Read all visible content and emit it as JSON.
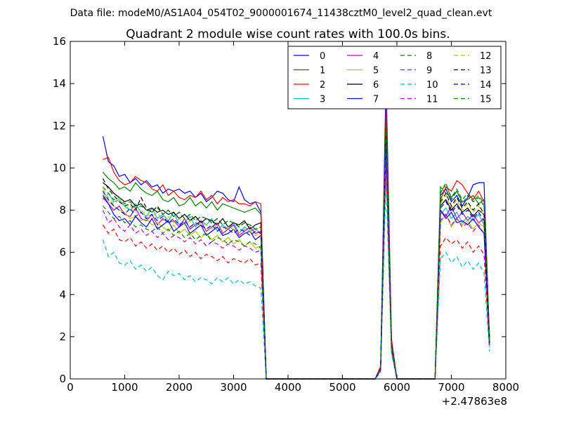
{
  "suptitle": "Data file: modeM0/AS1A04_054T02_9000001674_11438cztM0_level2_quad_clean.evt",
  "chart_data": {
    "type": "line",
    "title": "Quadrant 2 module wise count rates with 100.0s bins.",
    "xlabel": "",
    "ylabel": "",
    "x_offset_label": "+2.47863e8",
    "xlim": [
      0,
      8000
    ],
    "ylim": [
      0,
      16
    ],
    "x_ticks": [
      0,
      1000,
      2000,
      3000,
      4000,
      5000,
      6000,
      7000,
      8000
    ],
    "y_ticks": [
      0,
      2,
      4,
      6,
      8,
      10,
      12,
      14,
      16
    ],
    "grid": false,
    "legend_position": "top-right",
    "legend_columns": 4,
    "x": [
      600,
      700,
      800,
      900,
      1000,
      1100,
      1200,
      1300,
      1400,
      1500,
      1600,
      1700,
      1800,
      1900,
      2000,
      2100,
      2200,
      2300,
      2400,
      2500,
      2600,
      2700,
      2800,
      2900,
      3000,
      3100,
      3200,
      3300,
      3400,
      3500,
      3600,
      3700,
      3800,
      3900,
      4000,
      4100,
      4200,
      4300,
      4400,
      4500,
      4600,
      4700,
      4800,
      4900,
      5000,
      5100,
      5200,
      5300,
      5400,
      5500,
      5600,
      5700,
      5800,
      5900,
      6000,
      6100,
      6200,
      6300,
      6400,
      6500,
      6600,
      6700,
      6800,
      6900,
      7000,
      7100,
      7200,
      7300,
      7400,
      7500,
      7600,
      7700
    ],
    "series": [
      {
        "name": "0",
        "color": "#0000ff",
        "dash": "solid",
        "values": [
          11.5,
          10.3,
          10.1,
          9.6,
          9.7,
          9.3,
          9.5,
          9.2,
          9.4,
          9.1,
          9.2,
          8.8,
          9.0,
          8.9,
          9.0,
          8.8,
          8.9,
          8.6,
          8.8,
          8.4,
          8.6,
          8.9,
          8.8,
          8.5,
          8.4,
          9.1,
          8.5,
          8.3,
          8.4,
          7.9,
          0,
          0,
          0,
          0,
          0,
          0,
          0,
          0,
          0,
          0,
          0,
          0,
          0,
          0,
          0,
          0,
          0,
          0,
          0,
          0,
          0,
          0.5,
          14.3,
          1.8,
          0,
          0,
          0,
          0,
          0,
          0,
          0,
          0,
          8.7,
          9.0,
          8.4,
          8.7,
          8.2,
          8.6,
          9.2,
          9.3,
          9.3,
          1.9
        ]
      },
      {
        "name": "1",
        "color": "#008000",
        "dash": "solid",
        "values": [
          9.8,
          9.5,
          9.3,
          9.0,
          9.1,
          8.9,
          9.3,
          9.0,
          8.8,
          8.7,
          8.9,
          8.5,
          8.4,
          8.6,
          8.2,
          8.3,
          8.6,
          8.2,
          8.4,
          8.1,
          8.4,
          8.0,
          8.3,
          8.2,
          8.1,
          8.0,
          7.9,
          8.0,
          8.1,
          7.8,
          0,
          0,
          0,
          0,
          0,
          0,
          0,
          0,
          0,
          0,
          0,
          0,
          0,
          0,
          0,
          0,
          0,
          0,
          0,
          0,
          0,
          0.5,
          12.4,
          1.6,
          0,
          0,
          0,
          0,
          0,
          0,
          0,
          0,
          9.1,
          8.8,
          8.6,
          8.9,
          8.4,
          8.5,
          8.7,
          8.3,
          8.5,
          1.8
        ]
      },
      {
        "name": "2",
        "color": "#ff0000",
        "dash": "solid",
        "values": [
          10.4,
          10.5,
          9.8,
          9.4,
          9.2,
          9.3,
          9.6,
          9.4,
          9.3,
          9.0,
          8.9,
          9.2,
          8.7,
          8.9,
          8.6,
          8.5,
          8.7,
          8.6,
          8.9,
          8.5,
          8.7,
          8.3,
          8.6,
          8.4,
          8.5,
          8.3,
          8.3,
          8.2,
          8.4,
          8.3,
          0,
          0,
          0,
          0,
          0,
          0,
          0,
          0,
          0,
          0,
          0,
          0,
          0,
          0,
          0,
          0,
          0,
          0,
          0,
          0,
          0,
          0.6,
          13.1,
          1.9,
          0,
          0,
          0,
          0,
          0,
          0,
          0,
          0,
          8.5,
          9.1,
          8.9,
          9.4,
          9.2,
          8.8,
          8.5,
          8.9,
          8.4,
          2.0
        ]
      },
      {
        "name": "3",
        "color": "#00bfbf",
        "dash": "solid",
        "values": [
          8.5,
          8.8,
          8.4,
          8.5,
          8.2,
          8.0,
          8.3,
          7.9,
          7.7,
          8.1,
          7.6,
          7.8,
          7.5,
          7.9,
          7.3,
          7.4,
          7.7,
          7.2,
          7.5,
          7.3,
          7.6,
          7.0,
          7.3,
          7.1,
          7.4,
          6.9,
          7.2,
          7.0,
          7.1,
          6.9,
          0,
          0,
          0,
          0,
          0,
          0,
          0,
          0,
          0,
          0,
          0,
          0,
          0,
          0,
          0,
          0,
          0,
          0,
          0,
          0,
          0,
          0.5,
          11.6,
          1.5,
          0,
          0,
          0,
          0,
          0,
          0,
          0,
          0,
          7.8,
          8.1,
          7.6,
          7.9,
          7.4,
          7.7,
          7.5,
          7.8,
          7.3,
          1.6
        ]
      },
      {
        "name": "4",
        "color": "#bf00bf",
        "dash": "solid",
        "values": [
          8.6,
          8.3,
          8.0,
          8.2,
          7.8,
          7.7,
          8.1,
          7.6,
          7.5,
          7.8,
          7.3,
          7.6,
          7.4,
          7.5,
          7.2,
          7.6,
          7.1,
          7.3,
          7.5,
          7.0,
          7.2,
          7.4,
          6.9,
          7.1,
          7.3,
          6.8,
          7.0,
          7.2,
          6.9,
          7.0,
          0,
          0,
          0,
          0,
          0,
          0,
          0,
          0,
          0,
          0,
          0,
          0,
          0,
          0,
          0,
          0,
          0,
          0,
          0,
          0,
          0,
          0.5,
          11.9,
          1.5,
          0,
          0,
          0,
          0,
          0,
          0,
          0,
          0,
          8.0,
          7.7,
          8.2,
          7.6,
          7.9,
          7.5,
          7.8,
          7.4,
          7.6,
          1.7
        ]
      },
      {
        "name": "5",
        "color": "#bfbf00",
        "dash": "solid",
        "values": [
          8.8,
          8.4,
          8.2,
          8.0,
          7.9,
          7.6,
          7.7,
          7.5,
          7.6,
          7.3,
          7.4,
          7.2,
          7.0,
          7.3,
          6.9,
          7.1,
          6.8,
          7.0,
          6.7,
          6.9,
          6.6,
          6.8,
          6.5,
          6.7,
          6.4,
          6.6,
          6.3,
          6.5,
          6.2,
          6.3,
          0,
          0,
          0,
          0,
          0,
          0,
          0,
          0,
          0,
          0,
          0,
          0,
          0,
          0,
          0,
          0,
          0,
          0,
          0,
          0,
          0,
          0.4,
          11.2,
          1.4,
          0,
          0,
          0,
          0,
          0,
          0,
          0,
          0,
          7.4,
          7.8,
          7.2,
          7.6,
          7.3,
          7.5,
          7.1,
          7.4,
          7.2,
          1.6
        ]
      },
      {
        "name": "6",
        "color": "#000000",
        "dash": "solid",
        "values": [
          9.3,
          9.1,
          8.8,
          8.6,
          8.4,
          8.5,
          8.2,
          8.3,
          8.0,
          8.1,
          7.9,
          8.0,
          7.8,
          7.9,
          7.6,
          7.8,
          7.5,
          7.7,
          7.4,
          7.6,
          7.5,
          7.3,
          7.6,
          7.2,
          7.4,
          7.3,
          7.5,
          7.1,
          7.3,
          7.4,
          0,
          0,
          0,
          0,
          0,
          0,
          0,
          0,
          0,
          0,
          0,
          0,
          0,
          0,
          0,
          0,
          0,
          0,
          0,
          0,
          0,
          0.5,
          12.0,
          1.6,
          0,
          0,
          0,
          0,
          0,
          0,
          0,
          0,
          8.2,
          8.5,
          8.0,
          8.3,
          7.9,
          8.1,
          7.7,
          8.0,
          7.8,
          1.8
        ]
      },
      {
        "name": "7",
        "color": "#0000ff",
        "dash": "solid",
        "values": [
          8.7,
          8.3,
          7.8,
          7.5,
          7.6,
          7.3,
          7.7,
          7.4,
          7.2,
          7.6,
          7.1,
          7.3,
          7.5,
          7.0,
          7.2,
          7.4,
          6.9,
          7.1,
          7.3,
          6.8,
          7.0,
          7.2,
          6.8,
          6.9,
          7.1,
          6.7,
          6.9,
          7.0,
          6.6,
          6.8,
          0,
          0,
          0,
          0,
          0,
          0,
          0,
          0,
          0,
          0,
          0,
          0,
          0,
          0,
          0,
          0,
          0,
          0,
          0,
          0,
          0,
          0.4,
          10.8,
          1.4,
          0,
          0,
          0,
          0,
          0,
          0,
          0,
          0,
          8.0,
          7.6,
          7.9,
          7.4,
          7.5,
          7.3,
          7.6,
          7.2,
          6.9,
          1.6
        ]
      },
      {
        "name": "8",
        "color": "#008000",
        "dash": "dashed",
        "values": [
          8.2,
          7.9,
          7.6,
          7.7,
          7.4,
          7.5,
          7.2,
          7.3,
          7.1,
          7.0,
          7.2,
          6.9,
          7.1,
          6.8,
          7.0,
          6.7,
          6.9,
          6.6,
          6.8,
          6.9,
          6.5,
          6.7,
          6.6,
          6.4,
          6.6,
          6.5,
          6.3,
          6.5,
          6.4,
          6.2,
          0,
          0,
          0,
          0,
          0,
          0,
          0,
          0,
          0,
          0,
          0,
          0,
          0,
          0,
          0,
          0,
          0,
          0,
          0,
          0,
          0,
          0.4,
          12.2,
          1.5,
          0,
          0,
          0,
          0,
          0,
          0,
          0,
          0,
          8.8,
          9.3,
          8.5,
          8.9,
          8.3,
          8.7,
          8.4,
          8.6,
          8.2,
          1.8
        ]
      },
      {
        "name": "9",
        "color": "#ff0000",
        "dash": "dashed",
        "values": [
          7.3,
          6.9,
          7.1,
          6.6,
          6.5,
          6.7,
          6.3,
          6.5,
          6.2,
          6.4,
          6.1,
          6.3,
          6.0,
          6.2,
          5.9,
          6.1,
          5.8,
          6.0,
          5.7,
          5.9,
          5.8,
          5.6,
          5.8,
          5.5,
          5.7,
          5.6,
          5.5,
          5.7,
          5.4,
          5.5,
          0,
          0,
          0,
          0,
          0,
          0,
          0,
          0,
          0,
          0,
          0,
          0,
          0,
          0,
          0,
          0,
          0,
          0,
          0,
          0,
          0,
          0.4,
          10.4,
          1.3,
          0,
          0,
          0,
          0,
          0,
          0,
          0,
          0,
          6.3,
          6.7,
          6.4,
          6.6,
          6.2,
          6.5,
          6.0,
          6.3,
          5.9,
          1.5
        ]
      },
      {
        "name": "10",
        "color": "#00bfbf",
        "dash": "dashed",
        "values": [
          6.6,
          5.8,
          6.0,
          5.5,
          5.4,
          5.6,
          5.2,
          5.4,
          5.1,
          5.3,
          4.9,
          4.7,
          5.1,
          4.9,
          5.0,
          4.7,
          4.9,
          4.6,
          4.8,
          4.7,
          4.5,
          4.8,
          4.6,
          4.8,
          4.5,
          4.7,
          4.5,
          4.6,
          4.4,
          4.3,
          0,
          0,
          0,
          0,
          0,
          0,
          0,
          0,
          0,
          0,
          0,
          0,
          0,
          0,
          0,
          0,
          0,
          0,
          0,
          0,
          0,
          0.3,
          9.5,
          1.2,
          0,
          0,
          0,
          0,
          0,
          0,
          0,
          0,
          5.7,
          6.0,
          5.5,
          5.8,
          5.3,
          5.6,
          5.2,
          5.5,
          5.0,
          1.3
        ]
      },
      {
        "name": "11",
        "color": "#bf00bf",
        "dash": "dashed",
        "values": [
          8.0,
          7.4,
          7.6,
          7.2,
          7.0,
          7.3,
          6.9,
          7.1,
          6.8,
          7.0,
          6.7,
          6.9,
          6.6,
          6.8,
          6.7,
          6.5,
          6.7,
          6.4,
          6.6,
          6.3,
          6.5,
          6.4,
          6.2,
          6.4,
          6.3,
          6.1,
          6.3,
          6.2,
          6.0,
          6.1,
          0,
          0,
          0,
          0,
          0,
          0,
          0,
          0,
          0,
          0,
          0,
          0,
          0,
          0,
          0,
          0,
          0,
          0,
          0,
          0,
          0,
          0.4,
          11.0,
          1.4,
          0,
          0,
          0,
          0,
          0,
          0,
          0,
          0,
          7.5,
          7.8,
          7.3,
          7.6,
          7.2,
          7.4,
          7.0,
          7.3,
          6.9,
          1.6
        ]
      },
      {
        "name": "12",
        "color": "#bfbf00",
        "dash": "dashed",
        "values": [
          9.0,
          8.6,
          8.3,
          8.5,
          8.1,
          8.2,
          7.9,
          8.0,
          7.8,
          7.7,
          7.9,
          7.5,
          7.7,
          7.4,
          7.6,
          7.3,
          7.5,
          7.2,
          7.4,
          7.3,
          7.1,
          7.3,
          7.0,
          7.2,
          7.1,
          6.9,
          7.1,
          7.0,
          6.8,
          6.9,
          0,
          0,
          0,
          0,
          0,
          0,
          0,
          0,
          0,
          0,
          0,
          0,
          0,
          0,
          0,
          0,
          0,
          0,
          0,
          0,
          0,
          0.5,
          11.8,
          1.5,
          0,
          0,
          0,
          0,
          0,
          0,
          0,
          0,
          8.3,
          8.7,
          8.1,
          8.5,
          8.0,
          8.3,
          7.9,
          8.2,
          7.7,
          1.7
        ]
      },
      {
        "name": "13",
        "color": "#000000",
        "dash": "dashed",
        "values": [
          9.5,
          9.0,
          8.7,
          8.4,
          8.2,
          8.3,
          8.0,
          8.6,
          8.1,
          7.9,
          8.2,
          7.8,
          8.0,
          7.7,
          7.9,
          7.6,
          7.8,
          7.5,
          7.7,
          7.6,
          7.4,
          7.6,
          7.3,
          7.5,
          7.4,
          7.2,
          7.4,
          7.3,
          7.1,
          7.2,
          0,
          0,
          0,
          0,
          0,
          0,
          0,
          0,
          0,
          0,
          0,
          0,
          0,
          0,
          0,
          0,
          0,
          0,
          0,
          0,
          0,
          0.5,
          12.1,
          1.6,
          0,
          0,
          0,
          0,
          0,
          0,
          0,
          0,
          8.4,
          8.8,
          8.2,
          8.6,
          8.1,
          8.4,
          8.0,
          8.3,
          7.8,
          1.7
        ]
      },
      {
        "name": "14",
        "color": "#0000ff",
        "dash": "dashed",
        "values": [
          8.9,
          8.5,
          8.2,
          8.0,
          7.8,
          8.1,
          7.7,
          7.9,
          7.6,
          7.8,
          7.5,
          7.7,
          7.4,
          7.6,
          7.3,
          7.5,
          7.2,
          7.4,
          7.3,
          7.1,
          7.3,
          7.0,
          7.2,
          7.1,
          6.9,
          7.1,
          7.0,
          6.8,
          7.0,
          6.9,
          0,
          0,
          0,
          0,
          0,
          0,
          0,
          0,
          0,
          0,
          0,
          0,
          0,
          0,
          0,
          0,
          0,
          0,
          0,
          0,
          0,
          0.5,
          11.5,
          1.5,
          0,
          0,
          0,
          0,
          0,
          0,
          0,
          0,
          8.1,
          8.4,
          7.9,
          8.2,
          7.8,
          8.0,
          7.6,
          7.9,
          7.5,
          1.7
        ]
      },
      {
        "name": "15",
        "color": "#008000",
        "dash": "dashed",
        "values": [
          9.1,
          8.8,
          8.5,
          8.6,
          8.3,
          8.4,
          8.1,
          8.2,
          8.0,
          7.9,
          8.1,
          7.8,
          8.0,
          7.7,
          7.9,
          7.6,
          7.8,
          7.5,
          7.7,
          7.6,
          7.4,
          7.6,
          7.3,
          7.5,
          7.4,
          7.2,
          7.4,
          7.3,
          7.1,
          7.2,
          0,
          0,
          0,
          0,
          0,
          0,
          0,
          0,
          0,
          0,
          0,
          0,
          0,
          0,
          0,
          0,
          0,
          0,
          0,
          0,
          0,
          0.5,
          12.6,
          1.6,
          0,
          0,
          0,
          0,
          0,
          0,
          0,
          0,
          8.9,
          9.2,
          8.6,
          9.0,
          8.5,
          8.8,
          8.4,
          8.7,
          8.3,
          1.8
        ]
      }
    ]
  }
}
